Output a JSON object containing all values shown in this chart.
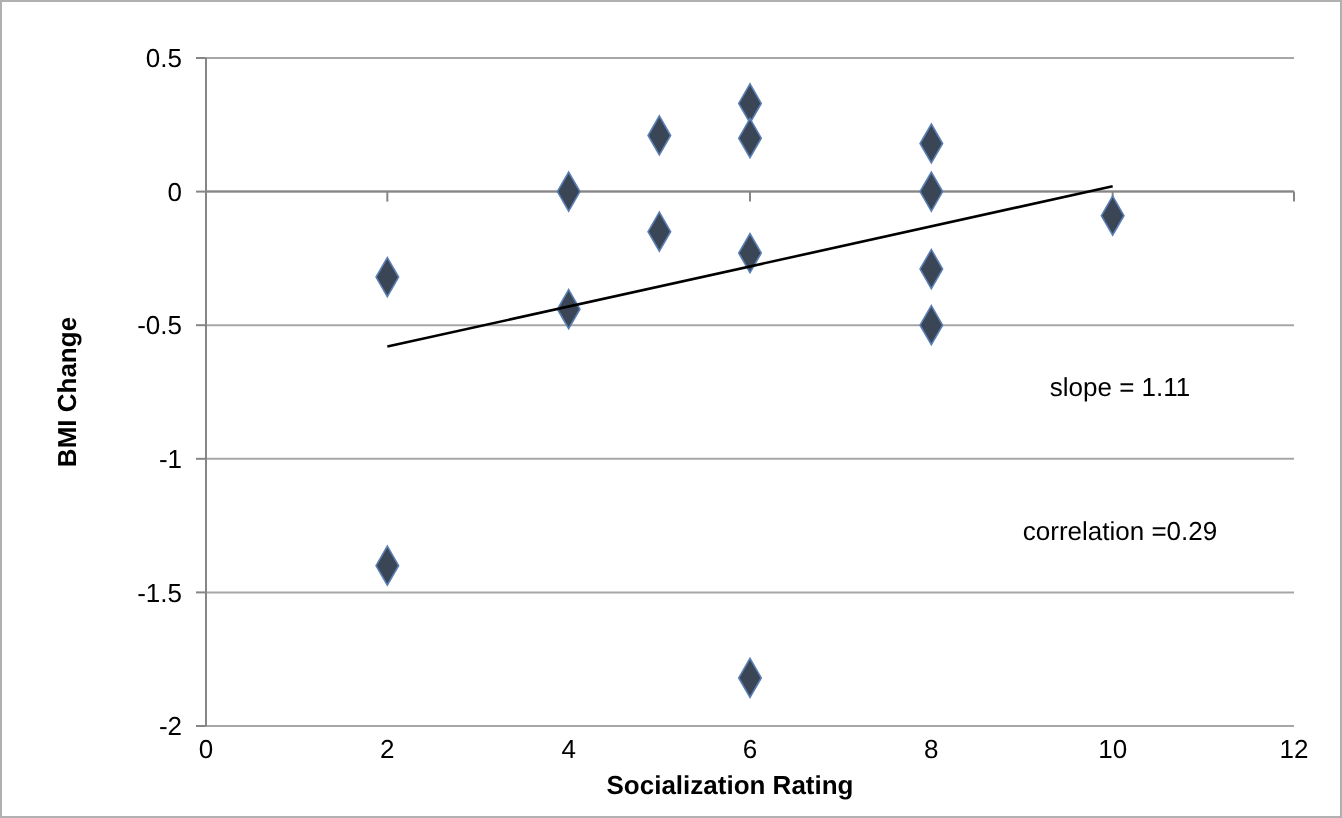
{
  "chart_data": {
    "type": "scatter",
    "xlabel": "Socialization Rating",
    "ylabel": "BMI Change",
    "xlim": [
      0,
      12
    ],
    "xticks": [
      0,
      2,
      4,
      6,
      8,
      10,
      12
    ],
    "ylim": [
      -2,
      0.5
    ],
    "yticks": [
      -2,
      -1.5,
      -1,
      -0.5,
      0,
      0.5
    ],
    "grid": "y",
    "series": [
      {
        "marker": "diamond",
        "color": "#3a4556",
        "x": [
          2,
          2,
          4,
          4,
          5,
          5,
          6,
          6,
          6,
          6,
          8,
          8,
          8,
          8,
          10
        ],
        "values": [
          -0.32,
          -1.4,
          0,
          -0.44,
          0.21,
          -0.15,
          0.33,
          0.2,
          -0.23,
          -1.82,
          0.18,
          0,
          -0.29,
          -0.5,
          -0.09
        ]
      },
      {
        "type": "line",
        "marker": "none",
        "color": "#000000",
        "x": [
          2,
          10
        ],
        "values": [
          -0.58,
          0.02
        ]
      }
    ],
    "annotations": [
      "slope = 1.11",
      "correlation =0.29"
    ]
  }
}
